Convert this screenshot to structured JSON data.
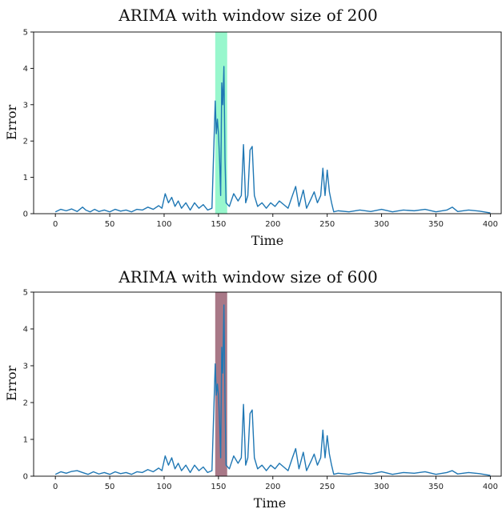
{
  "chart_data": [
    {
      "type": "line",
      "title": "ARIMA with window size of 200",
      "xlabel": "Time",
      "ylabel": "Error",
      "xlim": [
        -20,
        410
      ],
      "ylim": [
        0,
        5
      ],
      "xticks": [
        0,
        50,
        100,
        150,
        200,
        250,
        300,
        350,
        400
      ],
      "yticks": [
        0,
        1,
        2,
        3,
        4,
        5
      ],
      "grid": false,
      "highlight": {
        "x_start": 147,
        "x_end": 158,
        "color": "#7ef5c0",
        "opacity": 0.8
      },
      "series": [
        {
          "color": "#1f77b4",
          "points": [
            [
              0,
              0.05
            ],
            [
              5,
              0.12
            ],
            [
              10,
              0.08
            ],
            [
              15,
              0.13
            ],
            [
              20,
              0.06
            ],
            [
              25,
              0.18
            ],
            [
              28,
              0.1
            ],
            [
              32,
              0.05
            ],
            [
              36,
              0.12
            ],
            [
              40,
              0.06
            ],
            [
              45,
              0.1
            ],
            [
              50,
              0.05
            ],
            [
              55,
              0.12
            ],
            [
              60,
              0.07
            ],
            [
              65,
              0.1
            ],
            [
              70,
              0.05
            ],
            [
              75,
              0.12
            ],
            [
              80,
              0.1
            ],
            [
              85,
              0.18
            ],
            [
              90,
              0.12
            ],
            [
              95,
              0.22
            ],
            [
              98,
              0.15
            ],
            [
              101,
              0.55
            ],
            [
              104,
              0.3
            ],
            [
              107,
              0.45
            ],
            [
              110,
              0.2
            ],
            [
              113,
              0.35
            ],
            [
              116,
              0.15
            ],
            [
              120,
              0.3
            ],
            [
              124,
              0.1
            ],
            [
              128,
              0.3
            ],
            [
              132,
              0.15
            ],
            [
              136,
              0.25
            ],
            [
              140,
              0.1
            ],
            [
              144,
              0.15
            ],
            [
              147,
              3.1
            ],
            [
              148,
              2.2
            ],
            [
              149,
              2.6
            ],
            [
              150,
              2.2
            ],
            [
              151,
              1.5
            ],
            [
              152,
              0.5
            ],
            [
              153,
              3.6
            ],
            [
              154,
              3.0
            ],
            [
              155,
              4.05
            ],
            [
              156,
              1.5
            ],
            [
              157,
              0.3
            ],
            [
              160,
              0.2
            ],
            [
              164,
              0.55
            ],
            [
              168,
              0.35
            ],
            [
              171,
              0.5
            ],
            [
              173,
              1.9
            ],
            [
              175,
              0.3
            ],
            [
              177,
              0.5
            ],
            [
              179,
              1.75
            ],
            [
              181,
              1.85
            ],
            [
              183,
              0.5
            ],
            [
              186,
              0.2
            ],
            [
              190,
              0.3
            ],
            [
              194,
              0.15
            ],
            [
              198,
              0.3
            ],
            [
              202,
              0.2
            ],
            [
              206,
              0.35
            ],
            [
              210,
              0.25
            ],
            [
              214,
              0.15
            ],
            [
              218,
              0.5
            ],
            [
              221,
              0.75
            ],
            [
              224,
              0.2
            ],
            [
              228,
              0.65
            ],
            [
              231,
              0.15
            ],
            [
              235,
              0.4
            ],
            [
              238,
              0.6
            ],
            [
              241,
              0.3
            ],
            [
              244,
              0.5
            ],
            [
              246,
              1.25
            ],
            [
              248,
              0.5
            ],
            [
              250,
              1.2
            ],
            [
              252,
              0.6
            ],
            [
              254,
              0.3
            ],
            [
              256,
              0.05
            ],
            [
              260,
              0.08
            ],
            [
              270,
              0.05
            ],
            [
              280,
              0.1
            ],
            [
              290,
              0.06
            ],
            [
              300,
              0.12
            ],
            [
              310,
              0.05
            ],
            [
              320,
              0.1
            ],
            [
              330,
              0.08
            ],
            [
              340,
              0.12
            ],
            [
              350,
              0.05
            ],
            [
              360,
              0.1
            ],
            [
              365,
              0.18
            ],
            [
              370,
              0.06
            ],
            [
              380,
              0.1
            ],
            [
              390,
              0.07
            ],
            [
              400,
              0.02
            ]
          ]
        }
      ]
    },
    {
      "type": "line",
      "title": "ARIMA with window size of 600",
      "xlabel": "Time",
      "ylabel": "Error",
      "xlim": [
        -20,
        410
      ],
      "ylim": [
        0,
        5
      ],
      "xticks": [
        0,
        50,
        100,
        150,
        200,
        250,
        300,
        350,
        400
      ],
      "yticks": [
        0,
        1,
        2,
        3,
        4,
        5
      ],
      "grid": false,
      "highlight": {
        "x_start": 147,
        "x_end": 158,
        "color": "#8b4b5f",
        "opacity": 0.75
      },
      "series": [
        {
          "color": "#1f77b4",
          "points": [
            [
              0,
              0.05
            ],
            [
              5,
              0.12
            ],
            [
              10,
              0.08
            ],
            [
              15,
              0.13
            ],
            [
              20,
              0.15
            ],
            [
              25,
              0.1
            ],
            [
              30,
              0.05
            ],
            [
              35,
              0.12
            ],
            [
              40,
              0.06
            ],
            [
              45,
              0.1
            ],
            [
              50,
              0.05
            ],
            [
              55,
              0.12
            ],
            [
              60,
              0.07
            ],
            [
              65,
              0.1
            ],
            [
              70,
              0.05
            ],
            [
              75,
              0.12
            ],
            [
              80,
              0.1
            ],
            [
              85,
              0.18
            ],
            [
              90,
              0.12
            ],
            [
              95,
              0.22
            ],
            [
              98,
              0.15
            ],
            [
              101,
              0.55
            ],
            [
              104,
              0.3
            ],
            [
              107,
              0.5
            ],
            [
              110,
              0.2
            ],
            [
              113,
              0.35
            ],
            [
              116,
              0.15
            ],
            [
              120,
              0.3
            ],
            [
              124,
              0.1
            ],
            [
              128,
              0.3
            ],
            [
              132,
              0.15
            ],
            [
              136,
              0.25
            ],
            [
              140,
              0.1
            ],
            [
              144,
              0.15
            ],
            [
              147,
              3.05
            ],
            [
              148,
              2.2
            ],
            [
              149,
              2.5
            ],
            [
              150,
              2.2
            ],
            [
              151,
              1.5
            ],
            [
              152,
              0.5
            ],
            [
              153,
              3.5
            ],
            [
              154,
              2.8
            ],
            [
              155,
              4.65
            ],
            [
              156,
              2.0
            ],
            [
              157,
              0.3
            ],
            [
              160,
              0.2
            ],
            [
              164,
              0.55
            ],
            [
              168,
              0.35
            ],
            [
              171,
              0.5
            ],
            [
              173,
              1.95
            ],
            [
              175,
              0.3
            ],
            [
              177,
              0.5
            ],
            [
              179,
              1.7
            ],
            [
              181,
              1.8
            ],
            [
              183,
              0.5
            ],
            [
              186,
              0.2
            ],
            [
              190,
              0.3
            ],
            [
              194,
              0.15
            ],
            [
              198,
              0.3
            ],
            [
              202,
              0.2
            ],
            [
              206,
              0.35
            ],
            [
              210,
              0.25
            ],
            [
              214,
              0.15
            ],
            [
              218,
              0.5
            ],
            [
              221,
              0.75
            ],
            [
              224,
              0.2
            ],
            [
              228,
              0.65
            ],
            [
              231,
              0.15
            ],
            [
              235,
              0.4
            ],
            [
              238,
              0.6
            ],
            [
              241,
              0.3
            ],
            [
              244,
              0.5
            ],
            [
              246,
              1.25
            ],
            [
              248,
              0.5
            ],
            [
              250,
              1.1
            ],
            [
              252,
              0.6
            ],
            [
              254,
              0.3
            ],
            [
              256,
              0.05
            ],
            [
              260,
              0.08
            ],
            [
              270,
              0.05
            ],
            [
              280,
              0.1
            ],
            [
              290,
              0.06
            ],
            [
              300,
              0.12
            ],
            [
              310,
              0.05
            ],
            [
              320,
              0.1
            ],
            [
              330,
              0.08
            ],
            [
              340,
              0.12
            ],
            [
              350,
              0.05
            ],
            [
              360,
              0.1
            ],
            [
              365,
              0.15
            ],
            [
              370,
              0.06
            ],
            [
              380,
              0.1
            ],
            [
              390,
              0.07
            ],
            [
              400,
              0.02
            ]
          ]
        }
      ]
    }
  ]
}
